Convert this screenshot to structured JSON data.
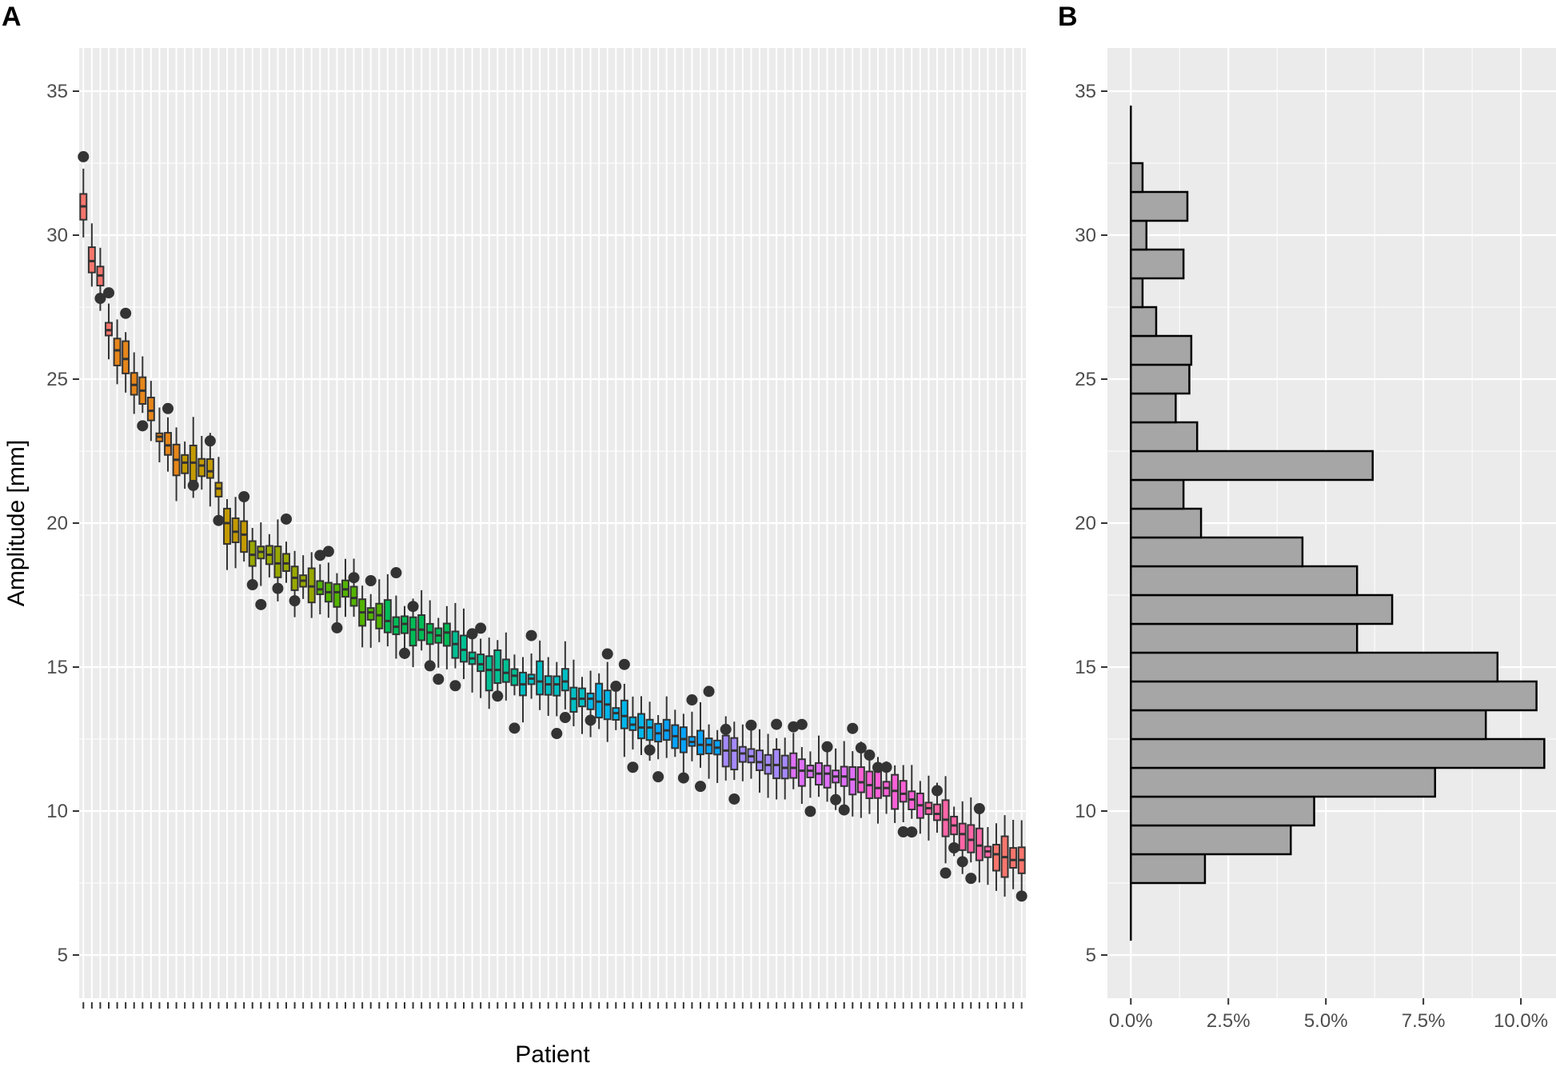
{
  "chart_data": [
    {
      "panel": "A",
      "type": "box",
      "xlabel": "Patient",
      "ylabel": "Amplitude [mm]",
      "ylim": [
        3.5,
        36.5
      ],
      "yticks": [
        5,
        10,
        15,
        20,
        25,
        30,
        35
      ],
      "grid": true,
      "n_patients": 112,
      "series_note": "one box per patient, median amplitudes in mm, ordered descending",
      "medians": [
        31.0,
        29.1,
        28.6,
        26.7,
        26.0,
        25.7,
        24.8,
        24.6,
        23.9,
        23.0,
        22.7,
        22.2,
        22.1,
        22.1,
        22.0,
        21.8,
        21.2,
        20.0,
        19.7,
        19.6,
        18.9,
        19.0,
        18.9,
        18.6,
        18.6,
        18.1,
        18.0,
        17.8,
        17.7,
        17.6,
        17.6,
        17.7,
        17.4,
        16.9,
        16.9,
        16.8,
        16.6,
        16.4,
        16.5,
        16.3,
        16.3,
        16.2,
        16.1,
        16.2,
        15.8,
        15.6,
        15.3,
        15.1,
        14.9,
        14.9,
        14.8,
        14.7,
        14.4,
        14.6,
        14.5,
        14.4,
        14.4,
        14.5,
        13.9,
        13.9,
        13.9,
        13.8,
        13.7,
        13.4,
        13.3,
        13.0,
        12.9,
        12.9,
        12.7,
        12.8,
        12.6,
        12.5,
        12.4,
        12.3,
        12.3,
        12.2,
        12.1,
        12.1,
        12.0,
        11.9,
        11.7,
        11.6,
        11.6,
        11.5,
        11.5,
        11.4,
        11.4,
        11.3,
        11.3,
        11.2,
        11.2,
        11.1,
        11.0,
        10.9,
        10.8,
        10.8,
        10.7,
        10.6,
        10.4,
        10.2,
        10.1,
        9.9,
        9.7,
        9.5,
        9.2,
        9.0,
        8.8,
        8.6,
        8.5,
        8.4,
        8.3,
        8.3
      ],
      "colors_by_rank": [
        "#f8766d",
        "#e6861a",
        "#c49a00",
        "#99a800",
        "#53b400",
        "#00bc56",
        "#00c094",
        "#00bfc4",
        "#00b6eb",
        "#06a4ff",
        "#a58aff",
        "#df70f8",
        "#fb61d7",
        "#ff66a8",
        "#f8766d"
      ]
    },
    {
      "panel": "B",
      "type": "bar",
      "orientation": "horizontal",
      "xlabel": "",
      "ylabel": "",
      "xticks": [
        "0.0%",
        "2.5%",
        "5.0%",
        "7.5%",
        "10.0%"
      ],
      "xlim": [
        -0.6,
        10.9
      ],
      "ylim": [
        3.5,
        36.5
      ],
      "yticks": [
        5,
        10,
        15,
        20,
        25,
        30,
        35
      ],
      "bin_width": 1,
      "bins": [
        {
          "start": 7.5,
          "end": 8.5,
          "percent": 1.9
        },
        {
          "start": 8.5,
          "end": 9.5,
          "percent": 4.1
        },
        {
          "start": 9.5,
          "end": 10.5,
          "percent": 4.7
        },
        {
          "start": 10.5,
          "end": 11.5,
          "percent": 7.8
        },
        {
          "start": 11.5,
          "end": 12.5,
          "percent": 10.6
        },
        {
          "start": 12.5,
          "end": 13.5,
          "percent": 9.1
        },
        {
          "start": 13.5,
          "end": 14.5,
          "percent": 10.4
        },
        {
          "start": 14.5,
          "end": 15.5,
          "percent": 9.4
        },
        {
          "start": 15.5,
          "end": 16.5,
          "percent": 5.8
        },
        {
          "start": 16.5,
          "end": 17.5,
          "percent": 6.7
        },
        {
          "start": 17.5,
          "end": 18.5,
          "percent": 5.8
        },
        {
          "start": 18.5,
          "end": 19.5,
          "percent": 4.4
        },
        {
          "start": 19.5,
          "end": 20.5,
          "percent": 1.8
        },
        {
          "start": 20.5,
          "end": 21.5,
          "percent": 1.35
        },
        {
          "start": 21.5,
          "end": 22.5,
          "percent": 6.2
        },
        {
          "start": 22.5,
          "end": 23.5,
          "percent": 1.7
        },
        {
          "start": 23.5,
          "end": 24.5,
          "percent": 1.15
        },
        {
          "start": 24.5,
          "end": 25.5,
          "percent": 1.5
        },
        {
          "start": 25.5,
          "end": 26.5,
          "percent": 1.55
        },
        {
          "start": 26.5,
          "end": 27.5,
          "percent": 0.65
        },
        {
          "start": 27.5,
          "end": 28.5,
          "percent": 0.3
        },
        {
          "start": 28.5,
          "end": 29.5,
          "percent": 1.35
        },
        {
          "start": 29.5,
          "end": 30.5,
          "percent": 0.4
        },
        {
          "start": 30.5,
          "end": 31.5,
          "percent": 1.45
        },
        {
          "start": 31.5,
          "end": 32.5,
          "percent": 0.3
        }
      ],
      "bar_fill": "#a6a6a6",
      "bar_stroke": "#000000"
    }
  ],
  "labels": {
    "panel_a": "A",
    "panel_b": "B"
  }
}
